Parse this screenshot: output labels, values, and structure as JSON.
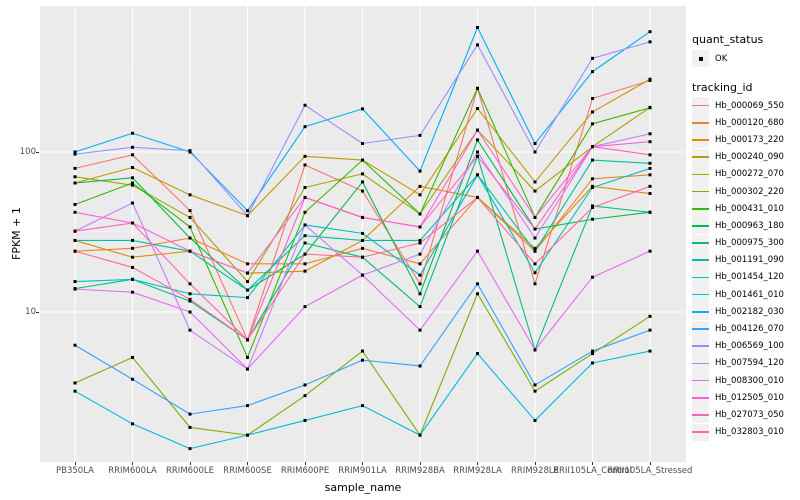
{
  "figure": {
    "background": "#FFFFFF",
    "panel_background": "#EBEBEB",
    "gridline_color": "#FFFFFF",
    "axis_text_color": "#4D4D4D",
    "point_color": "#000000"
  },
  "axes": {
    "x_label": "sample_name",
    "y_label": "FPKM + 1",
    "y_scale": "log10",
    "y_ticks": [
      {
        "label": "10",
        "value": 10
      },
      {
        "label": "100",
        "value": 100
      }
    ],
    "y_minor_gridlines": [
      3.162,
      31.623,
      316.228
    ]
  },
  "legend": {
    "quant_status": {
      "title": "quant_status",
      "items": [
        {
          "label": "OK",
          "marker": "black-square-point"
        }
      ]
    },
    "tracking_id_title": "tracking_id"
  },
  "chart_data": {
    "type": "line",
    "title": "",
    "xlabel": "sample_name",
    "ylabel": "FPKM + 1",
    "y_scale": "log10",
    "ylim_approx": [
      1.15,
      820
    ],
    "grid": "major-and-minor, white on gray panel",
    "legend_position": "right",
    "point_marker": "small black square (quant_status OK)",
    "categories": [
      "PB350LA",
      "RRIM600LA",
      "RRIM600LE",
      "RRIM600SE",
      "RRIM600PE",
      "RRIM901LA",
      "RRIM928BA",
      "RRIM928LA",
      "RRIM928LE",
      "RRII105LA_Control",
      "RRII105LA_Stressed"
    ],
    "series": [
      {
        "name": "Hb_000069_550",
        "color": "#F8766D",
        "values": [
          79,
          96,
          43,
          6.7,
          83,
          57,
          15,
          250,
          15,
          216,
          280
        ]
      },
      {
        "name": "Hb_000120_680",
        "color": "#EA8331",
        "values": [
          24,
          25,
          29,
          20,
          20,
          25,
          20,
          52,
          24,
          68,
          72
        ]
      },
      {
        "name": "Hb_000173_220",
        "color": "#D89000",
        "values": [
          28,
          22,
          24,
          17.5,
          18,
          28,
          61,
          52,
          25,
          61,
          55
        ]
      },
      {
        "name": "Hb_000240_090",
        "color": "#C09B00",
        "values": [
          64,
          80,
          54,
          40,
          94,
          89,
          54,
          187,
          65,
          178,
          285
        ]
      },
      {
        "name": "Hb_000272_070",
        "color": "#A3A500",
        "values": [
          70,
          62,
          39,
          15.5,
          60,
          73,
          41,
          137,
          57,
          108,
          190
        ]
      },
      {
        "name": "Hb_000302_220",
        "color": "#7CAE00",
        "values": [
          3.6,
          5.2,
          1.9,
          1.7,
          3.0,
          5.7,
          1.7,
          13,
          3.2,
          5.5,
          9.4
        ]
      },
      {
        "name": "Hb_000431_010",
        "color": "#39B600",
        "values": [
          47,
          64,
          34,
          5.2,
          42,
          89,
          41,
          250,
          39,
          150,
          189
        ]
      },
      {
        "name": "Hb_000963_180",
        "color": "#00BB4E",
        "values": [
          64,
          69,
          29,
          13.7,
          23,
          65,
          13,
          119,
          33,
          38,
          42
        ]
      },
      {
        "name": "Hb_000975_300",
        "color": "#00BF7D",
        "values": [
          14,
          16,
          11.7,
          6.7,
          27,
          22,
          10.8,
          94,
          5.8,
          46,
          42
        ]
      },
      {
        "name": "Hb_001191_090",
        "color": "#00C1A3",
        "values": [
          28,
          28,
          24,
          13.7,
          30,
          28,
          28,
          72,
          24,
          89,
          85
        ]
      },
      {
        "name": "Hb_001454_120",
        "color": "#00BFC4",
        "values": [
          15.5,
          16,
          13,
          12.3,
          35,
          31,
          17,
          72,
          17.6,
          60,
          79
        ]
      },
      {
        "name": "Hb_001461_010",
        "color": "#00BAE0",
        "values": [
          3.2,
          2.0,
          1.4,
          1.7,
          2.1,
          2.6,
          1.7,
          5.5,
          2.1,
          4.8,
          5.7
        ]
      },
      {
        "name": "Hb_002182_030",
        "color": "#00B0F6",
        "values": [
          100,
          131,
          100,
          43,
          144,
          186,
          76,
          600,
          113,
          318,
          565
        ]
      },
      {
        "name": "Hb_004126_070",
        "color": "#35A2FF",
        "values": [
          6.2,
          3.8,
          2.3,
          2.6,
          3.5,
          5.0,
          4.6,
          15,
          3.5,
          5.7,
          7.7
        ]
      },
      {
        "name": "Hb_006569_100",
        "color": "#9590FF",
        "values": [
          97,
          107,
          102,
          40,
          196,
          113,
          127,
          467,
          100,
          385,
          488
        ]
      },
      {
        "name": "Hb_007594_120",
        "color": "#C77CFF",
        "values": [
          32,
          48,
          7.7,
          4.4,
          35,
          17,
          23,
          100,
          29,
          108,
          130
        ]
      },
      {
        "name": "Hb_008300_010",
        "color": "#E76BF3",
        "values": [
          13.9,
          13.3,
          10,
          4.4,
          10.8,
          17,
          7.7,
          24,
          5.8,
          16.5,
          24
        ]
      },
      {
        "name": "Hb_012505_010",
        "color": "#FA62DB",
        "values": [
          42,
          36,
          24,
          17.5,
          52,
          39,
          34,
          137,
          39,
          108,
          116
        ]
      },
      {
        "name": "Hb_027073_050",
        "color": "#FF62BC",
        "values": [
          32,
          36,
          15,
          6.7,
          52,
          39,
          34,
          94,
          33,
          108,
          96
        ]
      },
      {
        "name": "Hb_032803_010",
        "color": "#FF6A98",
        "values": [
          24,
          19,
          12,
          6.7,
          23,
          22,
          27,
          52,
          20,
          45,
          61
        ]
      }
    ]
  }
}
